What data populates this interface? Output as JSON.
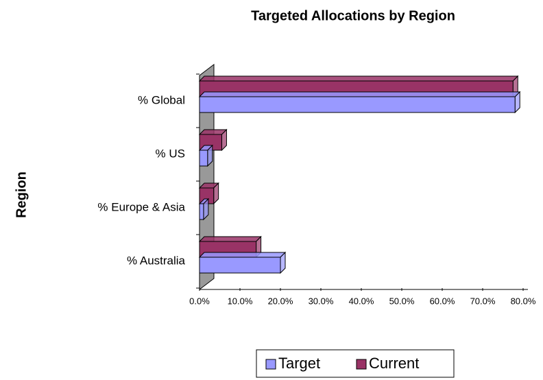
{
  "chart_data": {
    "type": "bar3d_horizontal",
    "title": "Targeted Allocations by Region",
    "y_label": "Region",
    "categories": [
      "% Global",
      "% US",
      "% Europe & Asia",
      "% Australia"
    ],
    "series": [
      {
        "name": "Target",
        "color": "#9999ff",
        "values": [
          78,
          2,
          1,
          20
        ]
      },
      {
        "name": "Current",
        "color": "#993366",
        "values": [
          77.5,
          5.5,
          3.5,
          14
        ]
      }
    ],
    "xlim": [
      0,
      80
    ],
    "xticks": [
      {
        "value": 0,
        "label": "0.0%"
      },
      {
        "value": 10,
        "label": "10.0%"
      },
      {
        "value": 20,
        "label": "20.0%"
      },
      {
        "value": 30,
        "label": "30.0%"
      },
      {
        "value": 40,
        "label": "40.0%"
      },
      {
        "value": 50,
        "label": "50.0%"
      },
      {
        "value": 60,
        "label": "60.0%"
      },
      {
        "value": 70,
        "label": "70.0%"
      },
      {
        "value": 80,
        "label": "80.0%"
      }
    ],
    "legend": "bottom"
  }
}
